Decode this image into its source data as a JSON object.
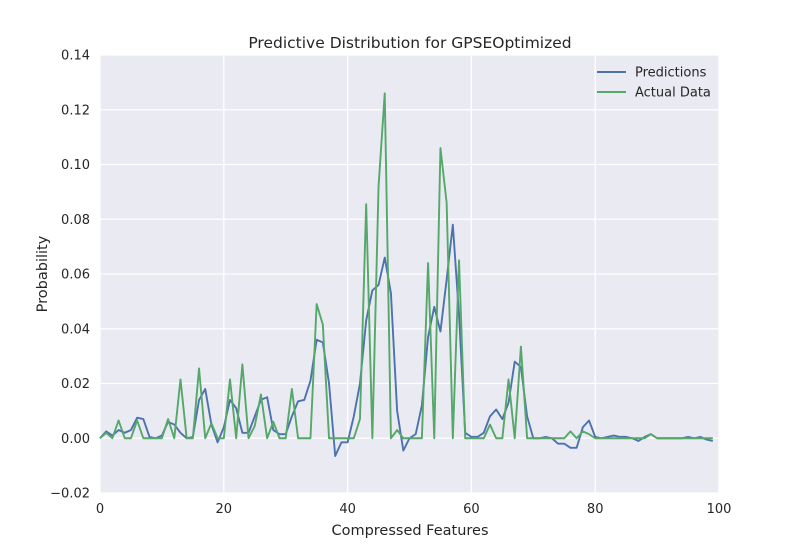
{
  "chart_data": {
    "type": "line",
    "title": "Predictive Distribution for GPSEOptimized",
    "xlabel": "Compressed Features",
    "ylabel": "Probability",
    "xlim": [
      0,
      100
    ],
    "ylim": [
      -0.02,
      0.14
    ],
    "xticks": [
      "0",
      "20",
      "40",
      "60",
      "80",
      "100"
    ],
    "yticks": [
      "−0.02",
      "0.00",
      "0.02",
      "0.04",
      "0.06",
      "0.08",
      "0.10",
      "0.12",
      "0.14"
    ],
    "grid": true,
    "legend_position": "top-right",
    "series": [
      {
        "name": "Predictions",
        "color": "#4c72b0",
        "values": [
          0,
          0.0025,
          0.001,
          0.003,
          0.002,
          0.003,
          0.0075,
          0.007,
          0.0005,
          0,
          0.001,
          0.006,
          0.005,
          0.002,
          0,
          0.0005,
          0.014,
          0.018,
          0.005,
          -0.0015,
          0.004,
          0.014,
          0.011,
          0.002,
          0.002,
          0.008,
          0.014,
          0.015,
          0.003,
          0.0015,
          0.0015,
          0.008,
          0.0135,
          0.014,
          0.021,
          0.036,
          0.035,
          0.02,
          -0.0065,
          -0.0015,
          -0.0015,
          0.008,
          0.02,
          0.043,
          0.054,
          0.056,
          0.066,
          0.053,
          0.01,
          -0.0045,
          0,
          0.0015,
          0.012,
          0.037,
          0.048,
          0.039,
          0.058,
          0.078,
          0.045,
          0.002,
          0.0005,
          0.0005,
          0.002,
          0.008,
          0.0105,
          0.007,
          0.013,
          0.028,
          0.026,
          0.008,
          0,
          0,
          0.0005,
          0,
          -0.002,
          -0.002,
          -0.0035,
          -0.0035,
          0.004,
          0.0065,
          0.0005,
          0,
          0.0005,
          0.001,
          0.0005,
          0.0005,
          0,
          -0.001,
          0.0005,
          0.0015,
          0,
          0,
          0,
          0,
          0,
          0.0005,
          0,
          0.0005,
          -0.0005,
          -0.001
        ]
      },
      {
        "name": "Actual Data",
        "color": "#55a868",
        "values": [
          0,
          0.002,
          0,
          0.0065,
          0,
          0,
          0.0065,
          0,
          0,
          0,
          0,
          0.007,
          0,
          0.0215,
          0,
          0,
          0.0255,
          0,
          0.0055,
          0,
          0,
          0.0215,
          0,
          0.027,
          0,
          0.0045,
          0.016,
          0,
          0.006,
          0,
          0,
          0.018,
          0,
          0,
          0,
          0.049,
          0.0415,
          0,
          0,
          0,
          0,
          0,
          0.007,
          0.0855,
          0,
          0.092,
          0.126,
          0,
          0.003,
          0,
          0,
          0,
          0,
          0.064,
          0,
          0.106,
          0.086,
          0,
          0.065,
          0,
          0,
          0,
          0,
          0.005,
          0,
          0,
          0.0215,
          0,
          0.0335,
          0,
          0,
          0,
          0,
          0,
          0,
          0,
          0.0025,
          0,
          0.0025,
          0.0015,
          0,
          0,
          0,
          0,
          0,
          0,
          0,
          0,
          0,
          0.0015,
          0,
          0,
          0,
          0,
          0,
          0,
          0,
          0,
          0,
          0
        ]
      }
    ]
  }
}
